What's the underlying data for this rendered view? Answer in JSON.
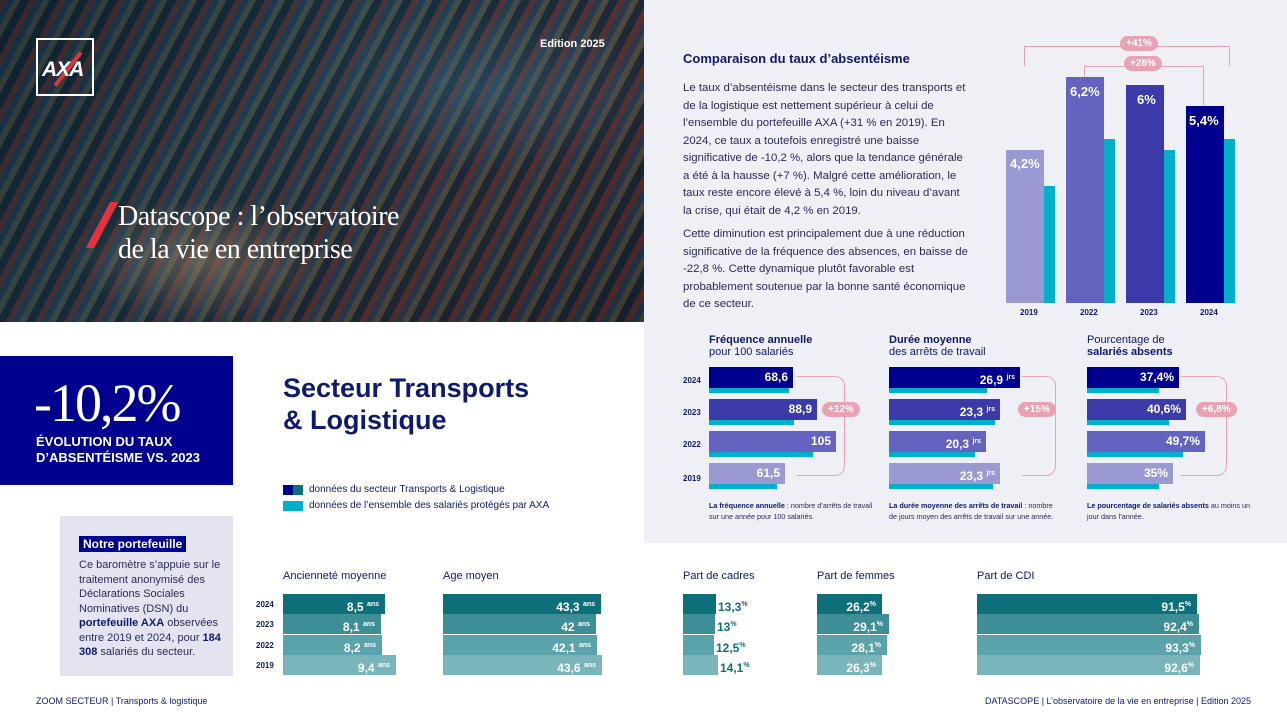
{
  "edition": "Edition 2025",
  "logo": "AXA",
  "hero_title_1": "Datascope : l’observatoire",
  "hero_title_2": "de la vie en entreprise",
  "comparison": {
    "title": "Comparaison du taux d’absentéisme",
    "p1": "Le taux d’absentéisme dans le secteur des transports et de la logistique est nettement supérieur à celui de l’ensemble du portefeuille AXA (+31 % en 2019). En 2024, ce taux a toutefois enregistré une baisse significative de -10,2 %, alors que la tendance générale a été à la hausse (+7 %). Malgré cette amélioration, le taux reste encore élevé à 5,4 %, loin du niveau d’avant la crise, qui était de 4,2 % en 2019.",
    "p2": "Cette diminution est principalement due à une réduction significative de la fréquence des absences, en baisse de -22,8 %. Cette dynamique plutôt favorable est probablement soutenue par la bonne santé économique de ce secteur."
  },
  "chart_data": [
    {
      "type": "bar",
      "categories": [
        "2019",
        "2022",
        "2023",
        "2024"
      ],
      "series": [
        {
          "values": [
            4.2,
            6.2,
            6.0,
            5.4
          ]
        },
        {
          "values": [
            3.2,
            4.85,
            4.5,
            4.85
          ]
        }
      ],
      "data_labels": [
        "4,2%",
        "6,2%",
        "6%",
        "5,4%"
      ],
      "annotations": [
        "+41%",
        "+28%"
      ],
      "colors": [
        "#9a9ad2",
        "#6563c0",
        "#3b3aa8",
        "#00008f",
        "#00b0ca"
      ]
    },
    {
      "type": "bar",
      "title": "Fréquence annuelle pour 100 salariés",
      "categories": [
        "2024",
        "2023",
        "2022",
        "2019"
      ],
      "values": [
        68.6,
        88.9,
        105,
        61.5
      ],
      "labels": [
        "68,6",
        "88,9",
        "105",
        "61,5"
      ],
      "annotation": "+12%"
    },
    {
      "type": "bar",
      "title": "Durée moyenne des arrêts de travail",
      "categories": [
        "2024",
        "2023",
        "2022",
        "2019"
      ],
      "values": [
        26.9,
        23.3,
        20.3,
        23.3
      ],
      "labels": [
        "26,9",
        "23,3",
        "20,3",
        "23,3"
      ],
      "unit": "jrs",
      "annotation": "+15%"
    },
    {
      "type": "bar",
      "title": "Pourcentage de salariés absents",
      "categories": [
        "2024",
        "2023",
        "2022",
        "2019"
      ],
      "values": [
        37.4,
        40.6,
        49.7,
        35
      ],
      "labels": [
        "37,4%",
        "40,6%",
        "49,7%",
        "35%"
      ],
      "annotation": "+6,8%"
    }
  ],
  "freq": {
    "title_b": "Fréquence annuelle",
    "title_r": "pour 100 salariés",
    "note_b": "La fréquence annuelle",
    "note_r": " : nombre d’arrêts de travail sur une année pour 100 salariés."
  },
  "duree": {
    "title_b": "Durée moyenne",
    "title_r": "des arrêts de travail",
    "unit": "jrs",
    "note_b": "La durée moyenne des arrêts de travail",
    "note_r": " : nombre de jours moyen des arrêts de travail sur une année."
  },
  "pct": {
    "title_r": "Pourcentage de",
    "title_b": "salariés absents",
    "note_b": "Le pourcentage de salariés absents",
    "note_r": " au moins un jour dans l’année."
  },
  "years_hbar": [
    "2024",
    "2023",
    "2022",
    "2019"
  ],
  "years_chart": [
    "2019",
    "2022",
    "2023",
    "2024"
  ],
  "kpi": {
    "value": "-10,2%",
    "label1": "ÉVOLUTION DU TAUX",
    "label2": "D’ABSENTÉISME VS. 2023"
  },
  "secteur": {
    "line1": "Secteur Transports",
    "line2": "& Logistique"
  },
  "legend": {
    "a": "données du secteur Transports & Logistique",
    "b": "données de l’ensemble des salariés protégés par AXA"
  },
  "portefeuille": {
    "heading": "Notre portefeuille",
    "t1": "Ce baromètre s’appuie sur le traitement anonymisé des Déclarations Sociales Nominatives (DSN) du ",
    "b1": "portefeuille AXA",
    "t2": " observées entre 2019 et 2024, pour ",
    "b2": "184 308",
    "t3": " salariés du secteur."
  },
  "bottom": {
    "anciennete": {
      "title": "Ancienneté moyenne",
      "labels": [
        "8,5",
        "8,1",
        "8,2",
        "9,4"
      ],
      "unit": "ans"
    },
    "age": {
      "title": "Age moyen",
      "labels": [
        "43,3",
        "42",
        "42,1",
        "43,6"
      ],
      "unit": "ans"
    },
    "cadres": {
      "title": "Part de cadres",
      "labels": [
        "13,3",
        "13",
        "12,5",
        "14,1"
      ]
    },
    "femmes": {
      "title": "Part de femmes",
      "labels": [
        "26,2",
        "29,1",
        "28,1",
        "26,3"
      ]
    },
    "cdi": {
      "title": "Part de CDI",
      "labels": [
        "91,5",
        "92,4",
        "93,3",
        "92,6"
      ]
    },
    "years": [
      "2024",
      "2023",
      "2022",
      "2019"
    ],
    "pct_sign": "%"
  },
  "footer": {
    "left": "ZOOM SECTEUR  |  Transports & logistique",
    "right": "DATASCOPE  |  L’observatoire de la vie en entreprise  |  Edition 2025"
  }
}
